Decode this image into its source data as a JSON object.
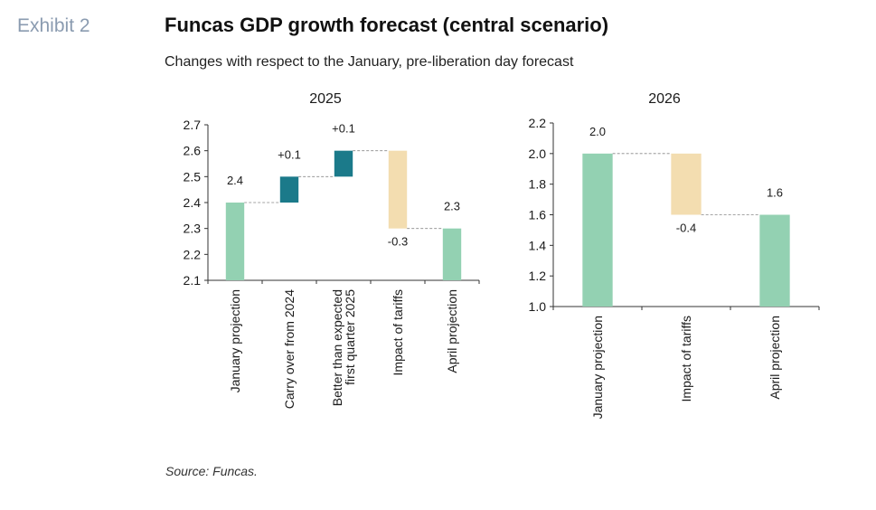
{
  "exhibit_label": "Exhibit 2",
  "title": "Funcas GDP growth forecast (central scenario)",
  "subtitle": "Changes with respect to the January, pre-liberation day forecast",
  "source": "Source: Funcas.",
  "colors": {
    "total": "#93d1b2",
    "positive": "#1b7a8a",
    "negative": "#f3ddb0",
    "axis": "#333333",
    "connector": "#888888"
  },
  "chart_data": [
    {
      "type": "bar",
      "subtype": "waterfall",
      "title": "2025",
      "ylim": [
        2.1,
        2.7
      ],
      "yticks": [
        "2.7",
        "2.6",
        "2.5",
        "2.4",
        "2.3",
        "2.2",
        "2.1"
      ],
      "ytick_values": [
        2.7,
        2.6,
        2.5,
        2.4,
        2.3,
        2.2,
        2.1
      ],
      "categories": [
        [
          "January projection"
        ],
        [
          "Carry over from 2024"
        ],
        [
          "Better than expected",
          "first quarter 2025"
        ],
        [
          "Impact of tariffs"
        ],
        [
          "April projection"
        ]
      ],
      "bars": [
        {
          "kind": "total",
          "start": 2.1,
          "end": 2.4,
          "label": "2.4"
        },
        {
          "kind": "positive",
          "start": 2.4,
          "end": 2.5,
          "label": "+0.1"
        },
        {
          "kind": "positive",
          "start": 2.5,
          "end": 2.6,
          "label": "+0.1"
        },
        {
          "kind": "negative",
          "start": 2.6,
          "end": 2.3,
          "label": "-0.3"
        },
        {
          "kind": "total",
          "start": 2.1,
          "end": 2.3,
          "label": "2.3"
        }
      ]
    },
    {
      "type": "bar",
      "subtype": "waterfall",
      "title": "2026",
      "ylim": [
        1.0,
        2.2
      ],
      "yticks": [
        "2.2",
        "2.0",
        "1.8",
        "1.6",
        "1.4",
        "1.2",
        "1.0"
      ],
      "ytick_values": [
        2.2,
        2.0,
        1.8,
        1.6,
        1.4,
        1.2,
        1.0
      ],
      "categories": [
        [
          "January projection"
        ],
        [
          "Impact of tariffs"
        ],
        [
          "April projection"
        ]
      ],
      "bars": [
        {
          "kind": "total",
          "start": 1.0,
          "end": 2.0,
          "label": "2.0"
        },
        {
          "kind": "negative",
          "start": 2.0,
          "end": 1.6,
          "label": "-0.4"
        },
        {
          "kind": "total",
          "start": 1.0,
          "end": 1.6,
          "label": "1.6"
        }
      ]
    }
  ]
}
